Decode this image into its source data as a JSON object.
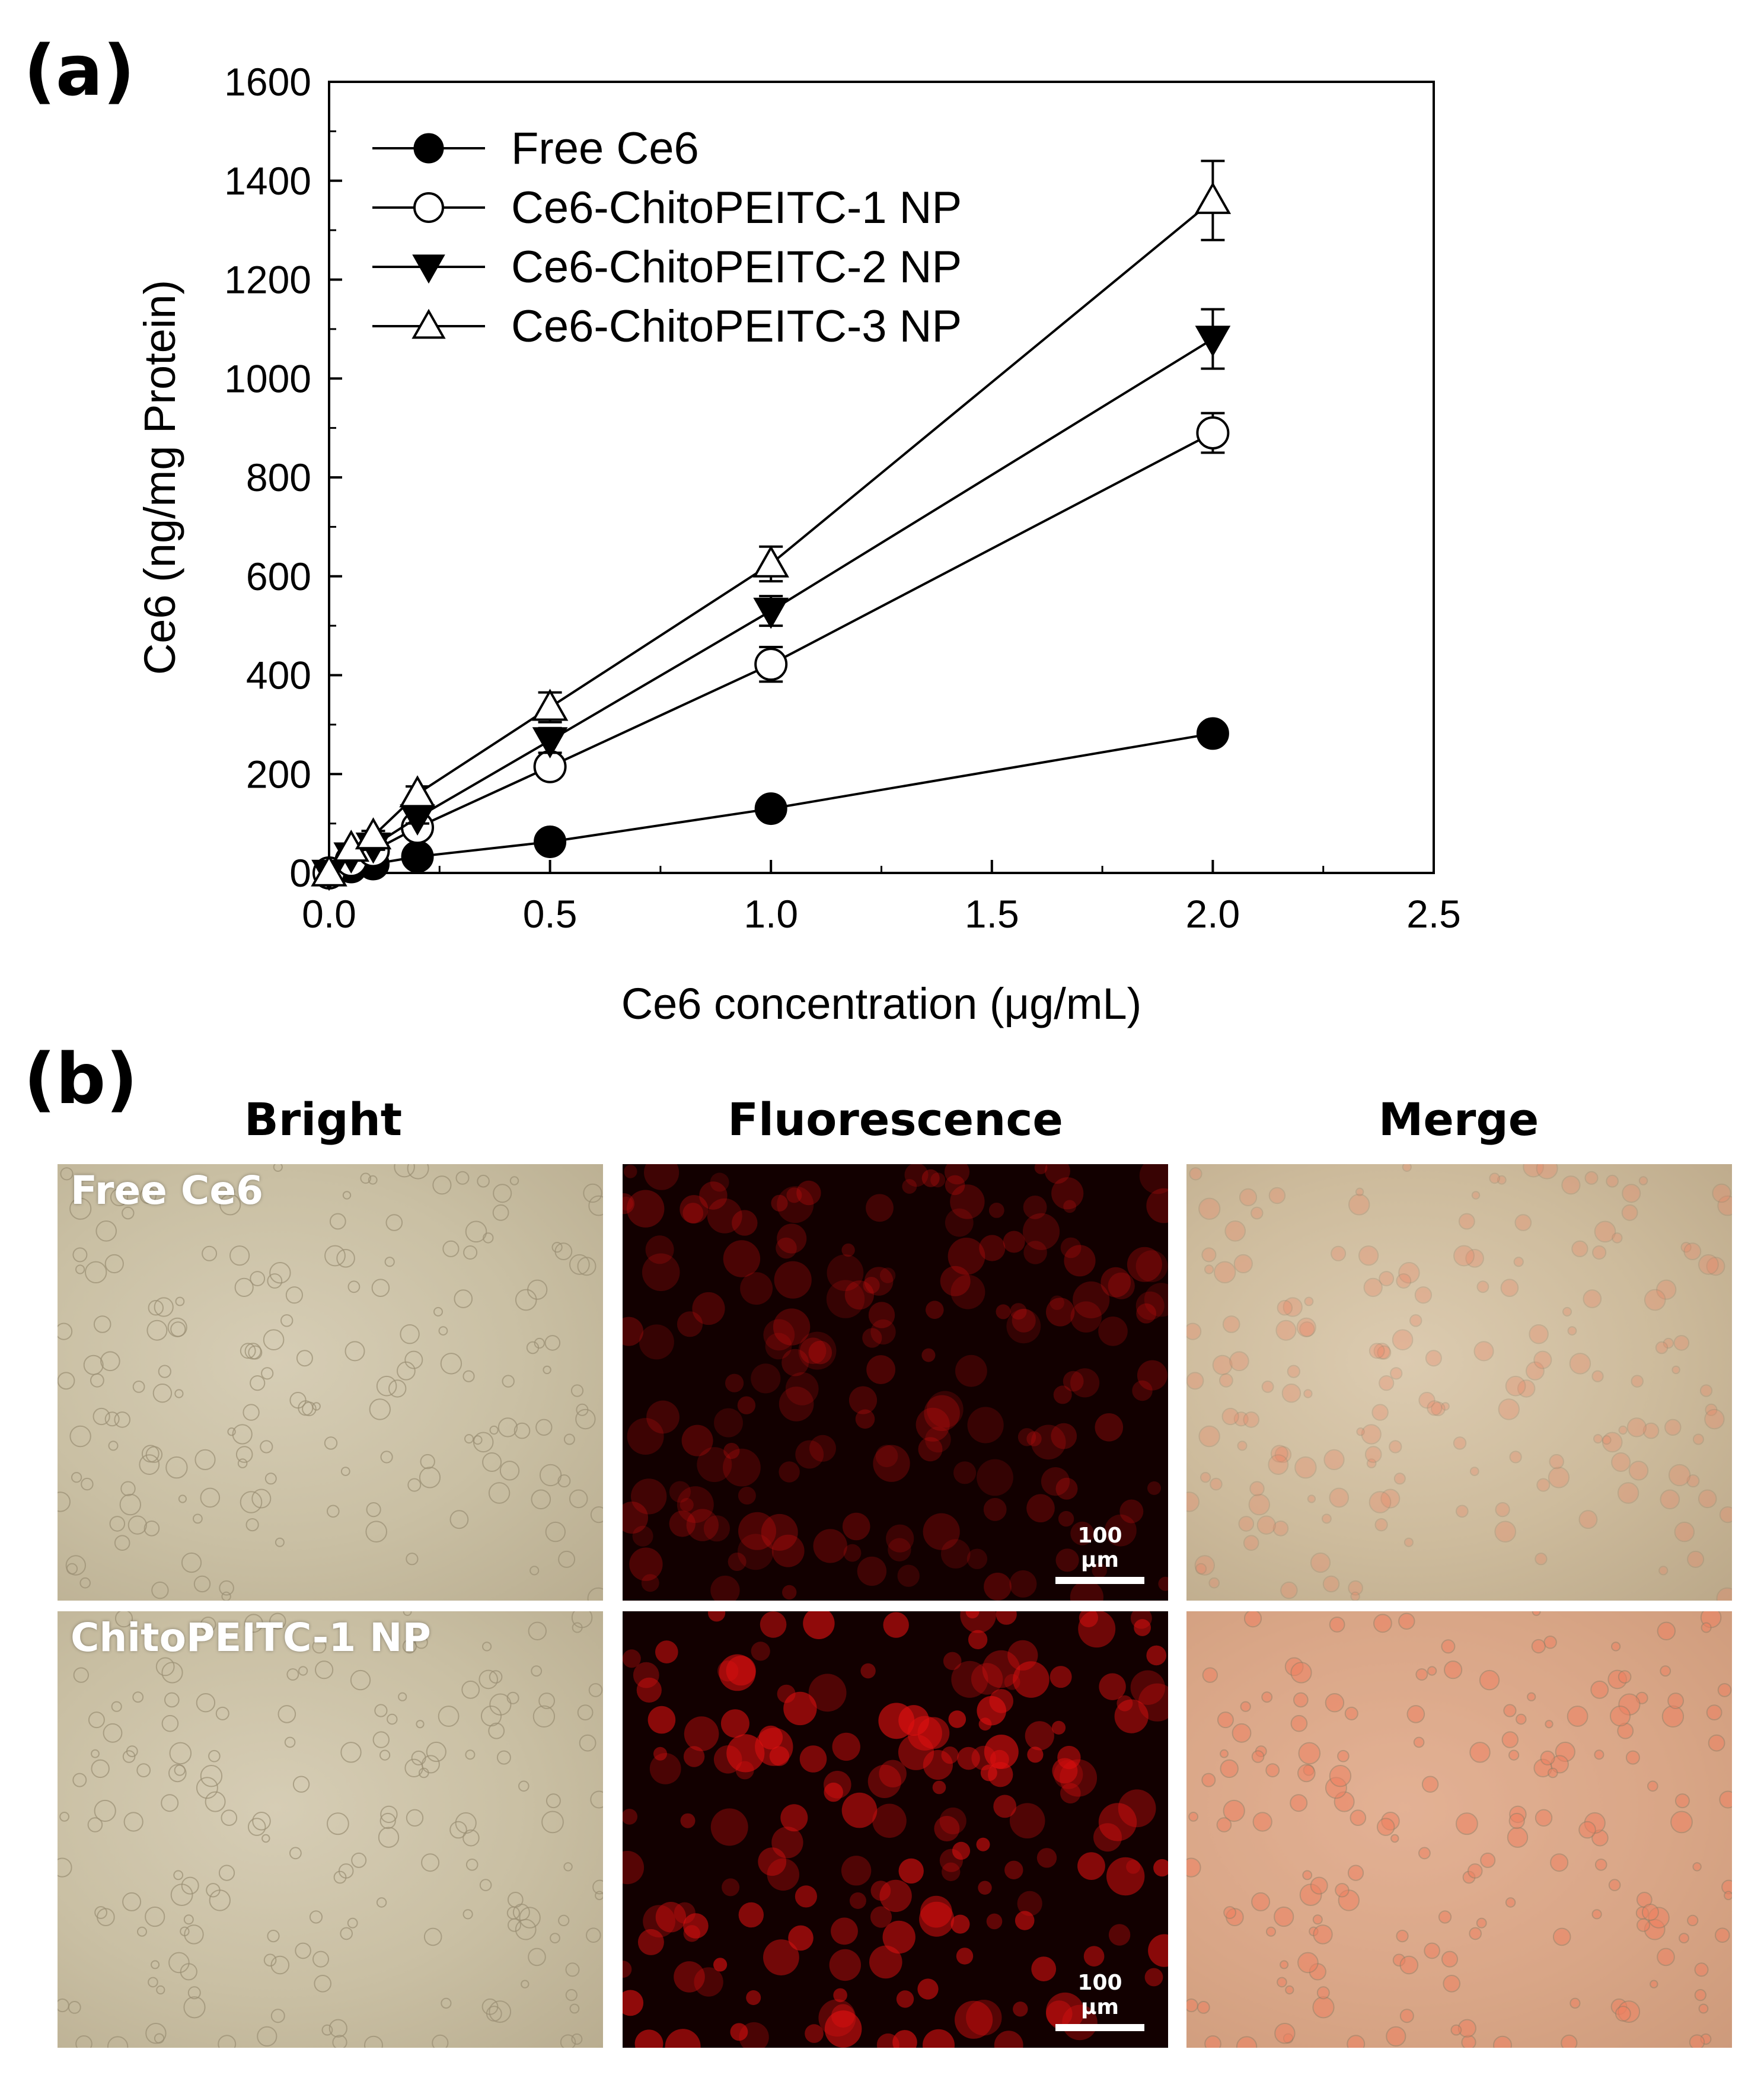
{
  "panel_a_label": "(a)",
  "panel_b_label": "(b)",
  "chart_data": {
    "type": "line",
    "title": "",
    "xlabel": "Ce6 concentration (μg/mL)",
    "ylabel": "Ce6 (ng/mg Protein)",
    "xlim": [
      0,
      2.5
    ],
    "ylim": [
      0,
      1600
    ],
    "xticks": [
      "0.0",
      "0.5",
      "1.0",
      "1.5",
      "2.0",
      "2.5"
    ],
    "yticks": [
      "0",
      "200",
      "400",
      "600",
      "800",
      "1000",
      "1200",
      "1400",
      "1600"
    ],
    "grid": false,
    "legend_position": "top-left",
    "x": [
      0,
      0.05,
      0.1,
      0.2,
      0.5,
      1.0,
      2.0
    ],
    "series": [
      {
        "name": "Free Ce6",
        "marker": "filled-circle",
        "values": [
          0,
          12,
          18,
          33,
          63,
          130,
          282
        ],
        "errors": [
          0,
          3,
          3,
          5,
          6,
          8,
          10
        ]
      },
      {
        "name": "Ce6-ChitoPEITC-1 NP",
        "marker": "open-circle",
        "values": [
          0,
          25,
          45,
          92,
          215,
          422,
          890
        ],
        "errors": [
          0,
          5,
          6,
          10,
          20,
          35,
          40
        ]
      },
      {
        "name": "Ce6-ChitoPEITC-2 NP",
        "marker": "filled-triangle-down",
        "values": [
          0,
          35,
          55,
          112,
          268,
          530,
          1080
        ],
        "errors": [
          0,
          6,
          8,
          12,
          25,
          30,
          60
        ]
      },
      {
        "name": "Ce6-ChitoPEITC-3 NP",
        "marker": "open-triangle-up",
        "values": [
          0,
          50,
          75,
          160,
          335,
          625,
          1360
        ],
        "errors": [
          0,
          8,
          10,
          15,
          30,
          35,
          80
        ]
      }
    ]
  },
  "panel_b": {
    "columns": [
      "Bright",
      "Fluorescence",
      "Merge"
    ],
    "rows": [
      {
        "label": "Free Ce6",
        "scale_bar": "100 μm",
        "fluorescence_intensity": 0.3
      },
      {
        "label": "ChitoPEITC-1 NP",
        "scale_bar": "100 μm",
        "fluorescence_intensity": 0.85
      }
    ],
    "colors": {
      "fluorescence": "#e01010",
      "merge_tint": "#f08060"
    }
  }
}
